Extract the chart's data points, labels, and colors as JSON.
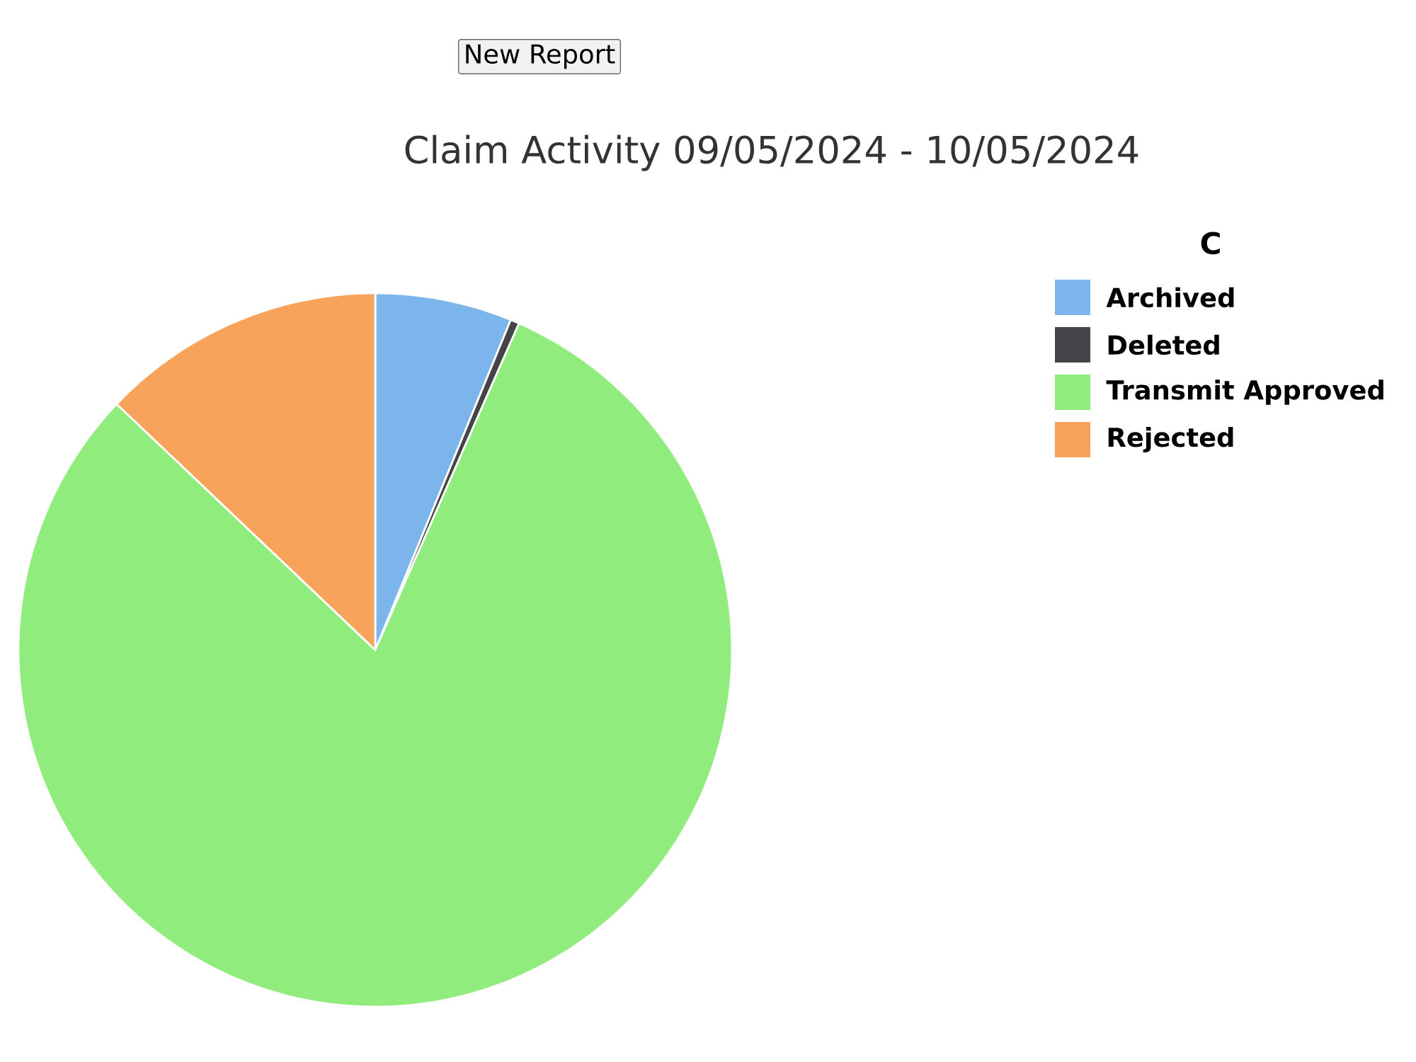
{
  "chart_data": {
    "type": "pie",
    "title": "Claim Activity 09/05/2024 - 10/05/2024",
    "categories": [
      "Archived",
      "Deleted",
      "Transmit Approved",
      "Rejected"
    ],
    "values": [
      6.2,
      0.4,
      80.5,
      12.9
    ],
    "colors": [
      "#7cb5ec",
      "#434348",
      "#90ed7d",
      "#f7a35c"
    ],
    "legend": "right",
    "legend_title": "C",
    "annotations": [
      "New Report"
    ]
  }
}
